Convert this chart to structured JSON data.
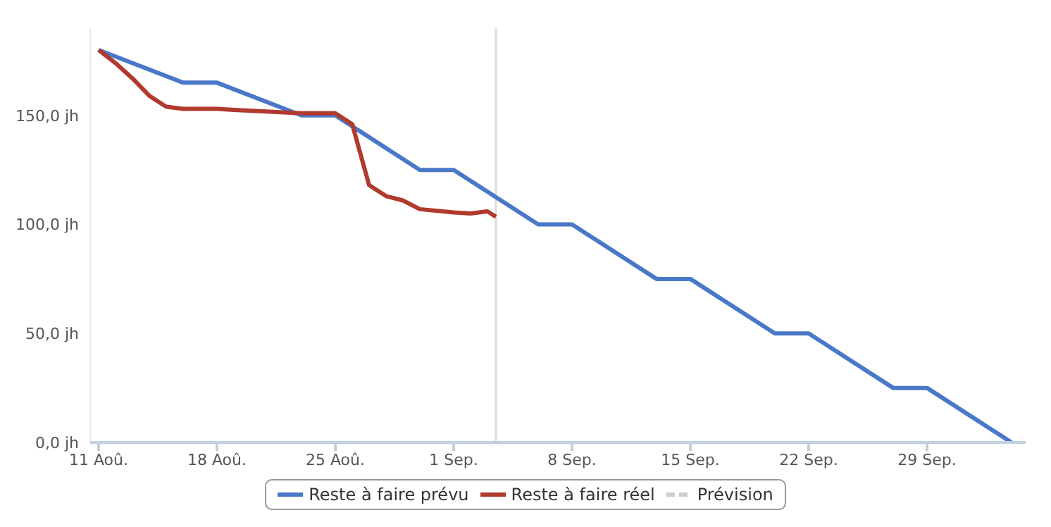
{
  "chart_data": {
    "type": "line",
    "xlim": [
      "--08-10T12:00",
      "--10-04T20:00"
    ],
    "xticks": [
      {
        "value": "--08-11",
        "label": "11 Aoû."
      },
      {
        "value": "--08-18",
        "label": "18 Aoû."
      },
      {
        "value": "--08-25",
        "label": "25 Aoû."
      },
      {
        "value": "--09-01",
        "label": "1 Sep."
      },
      {
        "value": "--09-08",
        "label": "8 Sep."
      },
      {
        "value": "--09-15",
        "label": "15 Sep."
      },
      {
        "value": "--09-22",
        "label": "22 Sep."
      },
      {
        "value": "--09-29",
        "label": "29 Sep."
      }
    ],
    "ylim": [
      0,
      190
    ],
    "yticks": [
      {
        "value": 0,
        "label": "0,0 jh"
      },
      {
        "value": 50,
        "label": "50,0 jh"
      },
      {
        "value": 100,
        "label": "100,0 jh"
      },
      {
        "value": 150,
        "label": "150,0 jh"
      }
    ],
    "grid": false,
    "legend": "bottom",
    "marker": "none",
    "ref_lines": [
      {
        "axis": "x",
        "value": "--09-03T12:00",
        "color": "#dcdcdc"
      }
    ],
    "series": [
      {
        "name": "Reste à faire prévu",
        "color": "#4a78c8",
        "line_style": "solid",
        "x": [
          "--08-11",
          "--08-16",
          "--08-18",
          "--08-23",
          "--08-25",
          "--08-30",
          "--09-01",
          "--09-06",
          "--09-08",
          "--09-13",
          "--09-15",
          "--09-20",
          "--09-22",
          "--09-27",
          "--09-29",
          "--10-04"
        ],
        "values": [
          180,
          165,
          165,
          150,
          150,
          125,
          125,
          100,
          100,
          75,
          75,
          50,
          50,
          25,
          25,
          0
        ]
      },
      {
        "name": "Reste à faire réel",
        "color": "#b03a2e",
        "line_style": "solid",
        "x": [
          "--08-11",
          "--08-12",
          "--08-13",
          "--08-14",
          "--08-15",
          "--08-16",
          "--08-18",
          "--08-19",
          "--08-23",
          "--08-25",
          "--08-26",
          "--08-27",
          "--08-28",
          "--08-29",
          "--08-30",
          "--09-01",
          "--09-02",
          "--09-03",
          "--09-03T12:00"
        ],
        "values": [
          180,
          174,
          167,
          159,
          154,
          153,
          153,
          152.5,
          151,
          151,
          146,
          118,
          113,
          111,
          107,
          105.5,
          105,
          106,
          103.5
        ]
      },
      {
        "name": "Prévision",
        "color": "#cccccc",
        "line_style": "dashed"
      }
    ]
  }
}
